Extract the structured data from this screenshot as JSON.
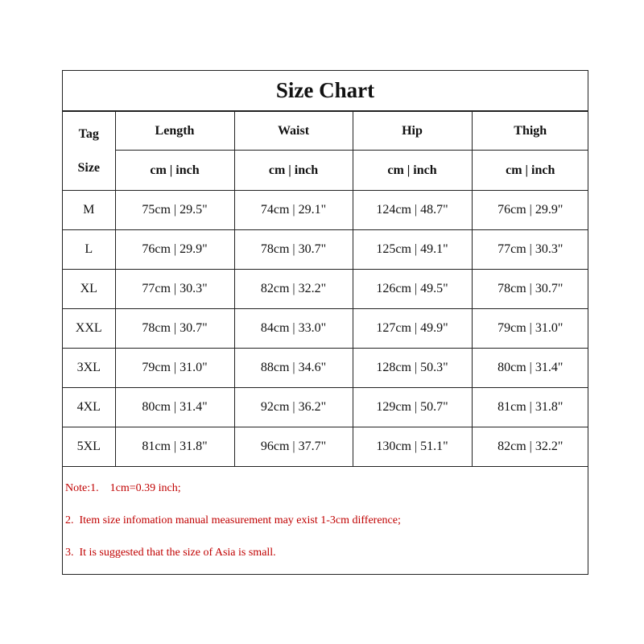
{
  "title": "Size Chart",
  "tag_size_label": [
    "Tag",
    "Size"
  ],
  "columns": [
    "Length",
    "Waist",
    "Hip",
    "Thigh"
  ],
  "unit_label": "cm | inch",
  "rows": [
    {
      "size": "M",
      "values": [
        "75cm | 29.5\"",
        "74cm | 29.1\"",
        "124cm | 48.7\"",
        "76cm | 29.9\""
      ]
    },
    {
      "size": "L",
      "values": [
        "76cm | 29.9\"",
        "78cm | 30.7\"",
        "125cm | 49.1\"",
        "77cm | 30.3\""
      ]
    },
    {
      "size": "XL",
      "values": [
        "77cm | 30.3\"",
        "82cm | 32.2\"",
        "126cm | 49.5\"",
        "78cm | 30.7\""
      ]
    },
    {
      "size": "XXL",
      "values": [
        "78cm | 30.7\"",
        "84cm | 33.0\"",
        "127cm | 49.9\"",
        "79cm | 31.0\""
      ]
    },
    {
      "size": "3XL",
      "values": [
        "79cm | 31.0\"",
        "88cm | 34.6\"",
        "128cm | 50.3\"",
        "80cm | 31.4\""
      ]
    },
    {
      "size": "4XL",
      "values": [
        "80cm | 31.4\"",
        "92cm | 36.2\"",
        "129cm | 50.7\"",
        "81cm | 31.8\""
      ]
    },
    {
      "size": "5XL",
      "values": [
        "81cm | 31.8\"",
        "96cm | 37.7\"",
        "130cm | 51.1\"",
        "82cm | 32.2\""
      ]
    }
  ],
  "notes": [
    "Note:1.    1cm=0.39 inch;",
    "2.  Item size infomation manual measurement may exist 1-3cm difference;",
    "3.  It is suggested that the size of Asia is small."
  ],
  "colors": {
    "note_text": "#c00000",
    "border": "#222222"
  }
}
